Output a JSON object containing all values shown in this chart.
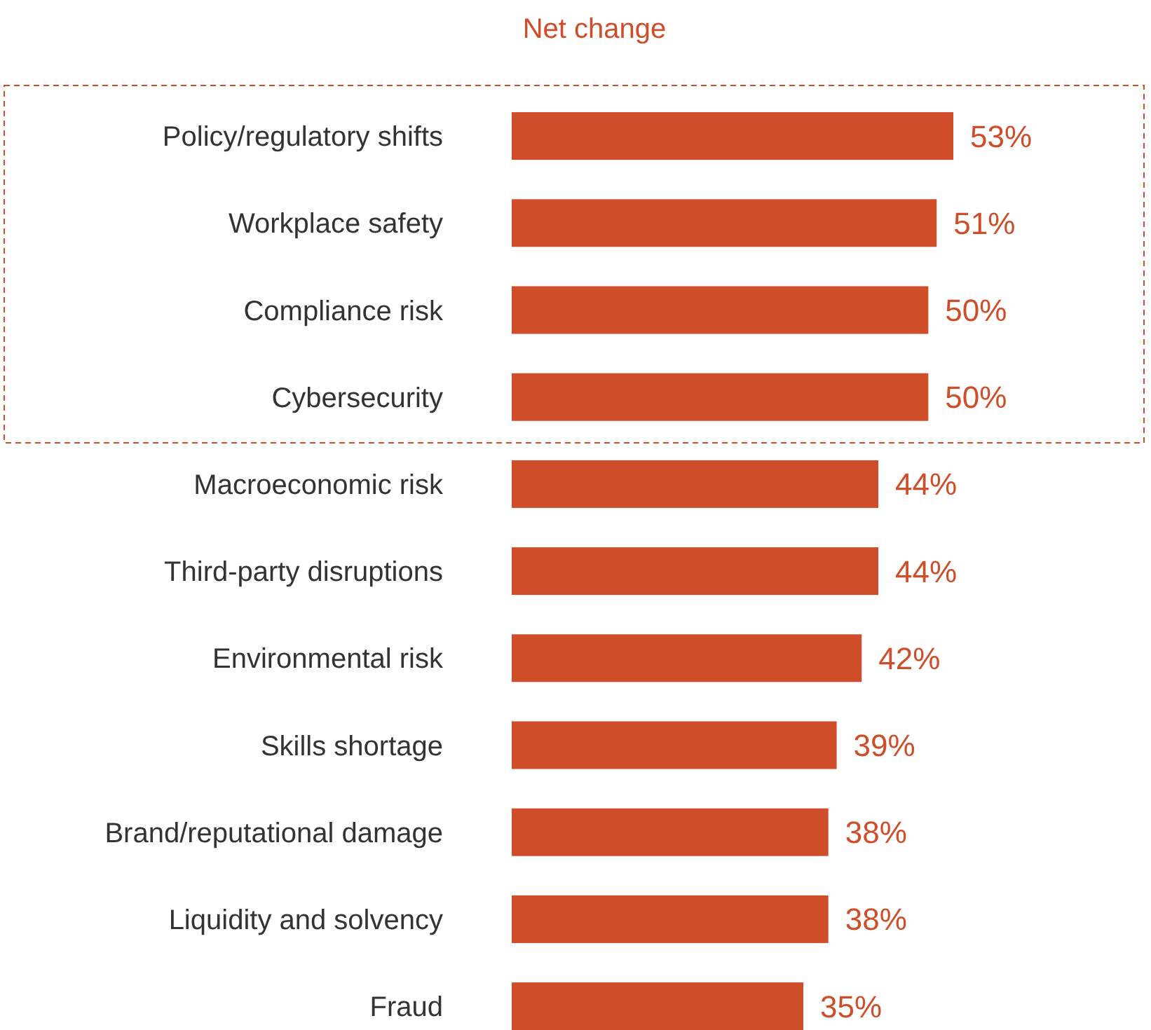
{
  "chart_data": {
    "type": "bar",
    "orientation": "horizontal",
    "title": "Net change",
    "categories": [
      "Policy/regulatory shifts",
      "Workplace safety",
      "Compliance risk",
      "Cybersecurity",
      "Macroeconomic risk",
      "Third-party disruptions",
      "Environmental risk",
      "Skills shortage",
      "Brand/reputational damage",
      "Liquidity and solvency",
      "Fraud"
    ],
    "values": [
      53,
      51,
      50,
      50,
      44,
      44,
      42,
      39,
      38,
      38,
      35
    ],
    "value_labels": [
      "53%",
      "51%",
      "50%",
      "50%",
      "44%",
      "44%",
      "42%",
      "39%",
      "38%",
      "38%",
      "35%"
    ],
    "color": "#d04d29"
  }
}
